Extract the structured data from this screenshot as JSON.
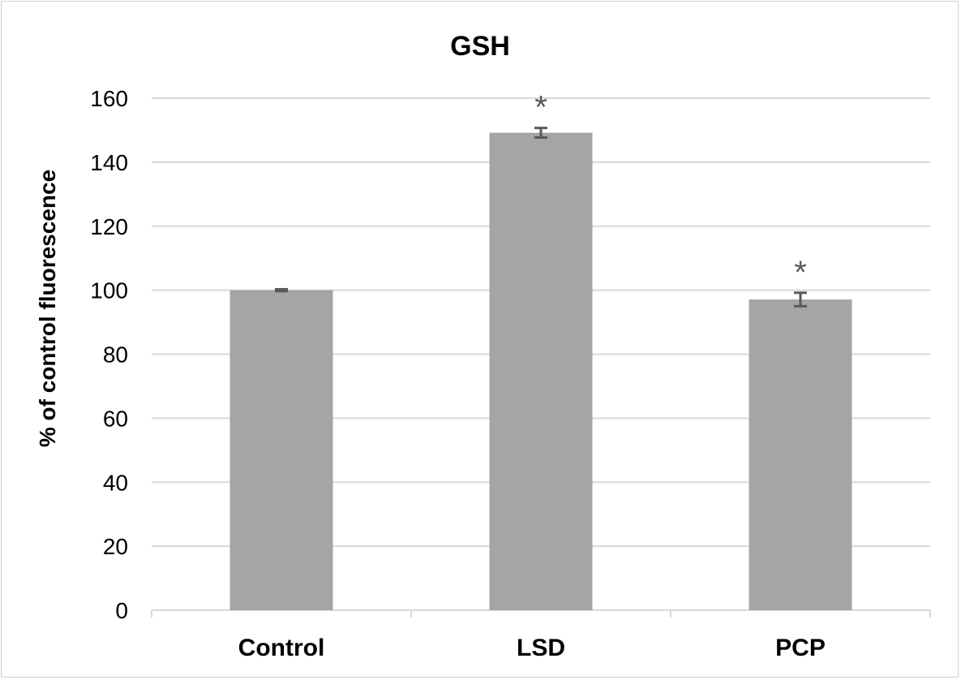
{
  "chart_data": {
    "type": "bar",
    "title": "GSH",
    "xlabel": "",
    "ylabel": "% of control fluorescence",
    "categories": [
      "Control",
      "LSD",
      "PCP"
    ],
    "values": [
      100,
      149.2,
      97.1
    ],
    "errors": [
      0.3,
      1.5,
      2.1
    ],
    "annotations": [
      "",
      "*",
      "*"
    ],
    "ylim": [
      0,
      160
    ],
    "yticks": [
      0,
      20,
      40,
      60,
      80,
      100,
      120,
      140,
      160
    ],
    "grid": true,
    "legend": "none",
    "colors": {
      "bar": "#a5a5a5",
      "error": "#595959",
      "grid": "#d9d9d9",
      "text": "#000000",
      "tick_text": "#595959"
    }
  }
}
